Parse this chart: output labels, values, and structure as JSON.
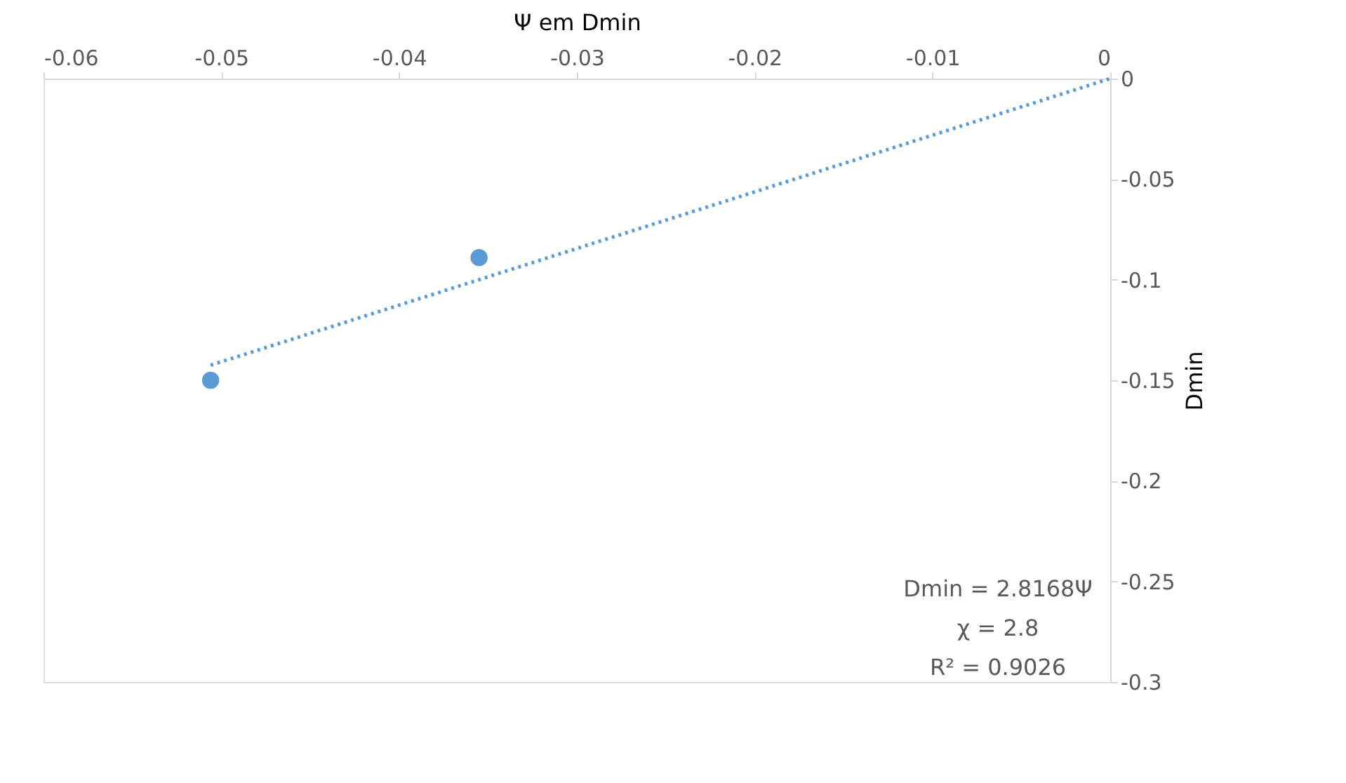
{
  "chart_data": {
    "type": "scatter",
    "xlabel": "Ψ em Dmin",
    "ylabel": "Dmin",
    "x": [
      -0.0506,
      -0.0355
    ],
    "series": [
      {
        "color": "#5b9bd5",
        "values": [
          -0.15,
          -0.089
        ],
        "marker": "circle"
      },
      {
        "type": "line",
        "color": "#5b9bd5",
        "x": [
          -0.0506,
          0
        ],
        "values": [
          -0.1425,
          0
        ],
        "line_style": "dotted",
        "marker": "none"
      }
    ],
    "xlim": [
      -0.06,
      0
    ],
    "xticks": [
      -0.06,
      -0.05,
      -0.04,
      -0.03,
      -0.02,
      -0.01,
      0
    ],
    "ylim": [
      -0.3,
      0
    ],
    "yticks": [
      -0.3,
      -0.25,
      -0.2,
      -0.15,
      -0.1,
      -0.05,
      0
    ],
    "grid": false,
    "annotations": [
      "Dmin = 2.8168Ψ",
      "χ = 2.8",
      "R² = 0.9026"
    ]
  }
}
